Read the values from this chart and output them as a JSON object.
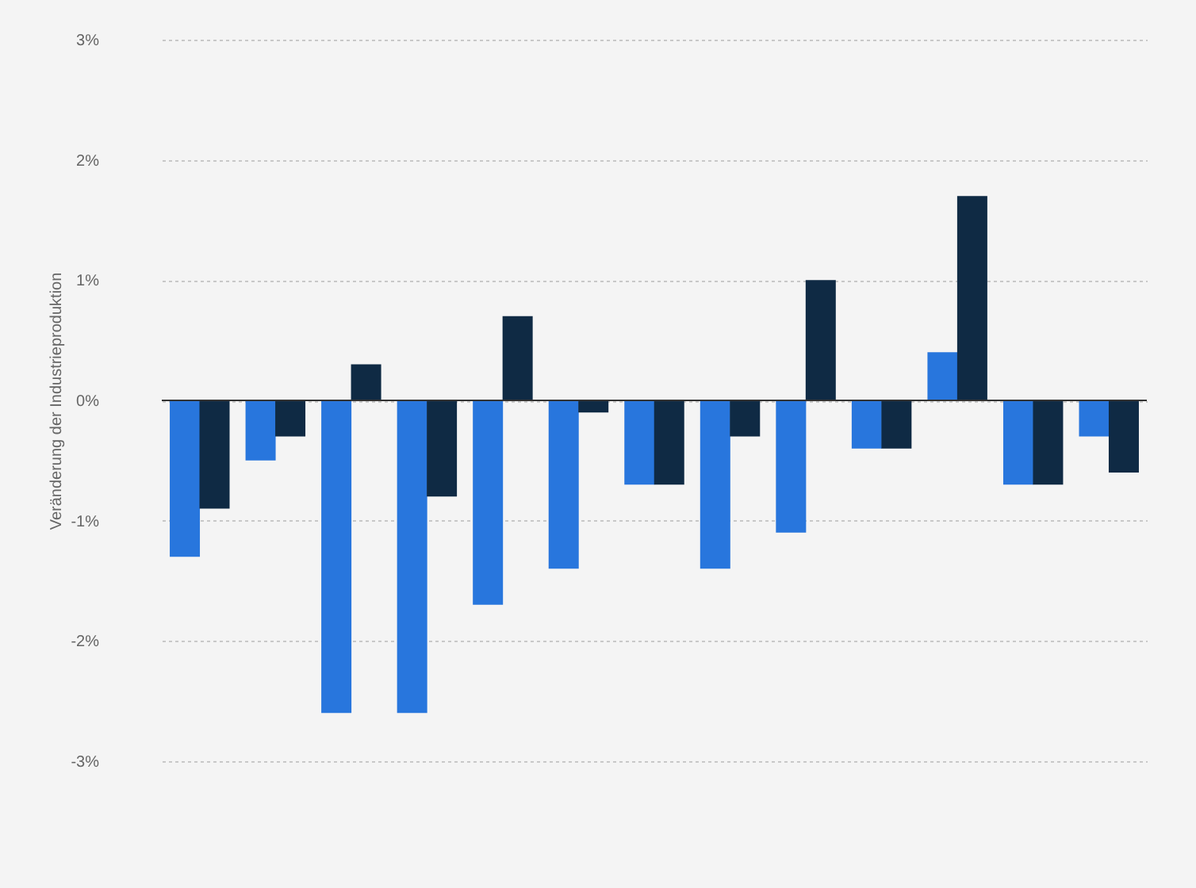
{
  "chart_data": {
    "type": "bar",
    "ylabel": "Veränderung der Industrieproduktion",
    "categories": [
      null,
      null,
      null,
      null,
      null,
      null,
      null,
      null,
      null,
      null,
      null,
      null,
      null
    ],
    "series": [
      {
        "color": "#2876dd",
        "values": [
          -1.3,
          -0.5,
          -2.6,
          -2.6,
          -1.7,
          -1.4,
          -0.7,
          -1.4,
          -1.1,
          -0.4,
          0.4,
          -0.7,
          -0.3
        ]
      },
      {
        "color": "#0f2a44",
        "values": [
          -0.9,
          -0.3,
          0.3,
          -0.8,
          0.7,
          -0.1,
          -0.7,
          -0.3,
          1.0,
          -0.4,
          1.7,
          -0.7,
          -0.6
        ]
      }
    ],
    "ylim": [
      -3,
      3
    ],
    "yticks": [
      {
        "value": -3,
        "label": "-3%"
      },
      {
        "value": -2,
        "label": "-2%"
      },
      {
        "value": -1,
        "label": "-1%"
      },
      {
        "value": 0,
        "label": "0%"
      },
      {
        "value": 1,
        "label": "1%"
      },
      {
        "value": 2,
        "label": "2%"
      },
      {
        "value": 3,
        "label": "3%"
      }
    ],
    "grid": "y",
    "tick_labels": "y",
    "legend": false
  }
}
